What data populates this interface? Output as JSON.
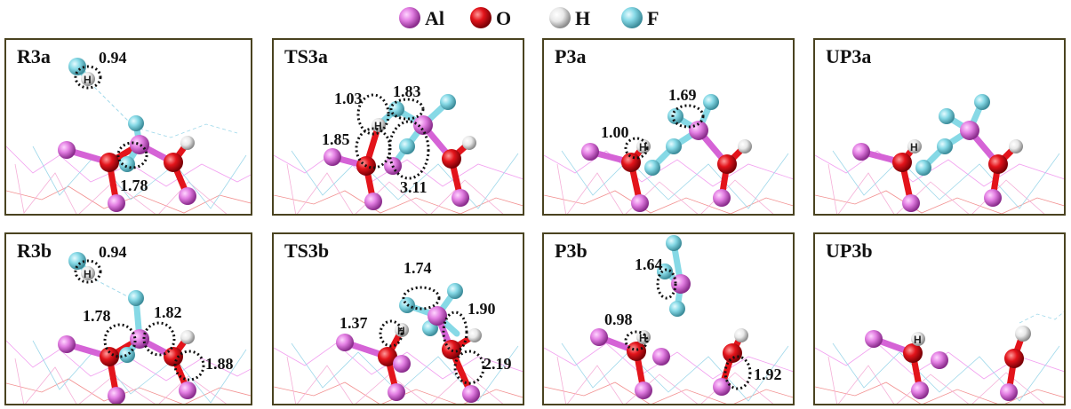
{
  "legend": [
    {
      "label": "Al",
      "color": "#d563d6",
      "icon": "al-atom-icon"
    },
    {
      "label": "O",
      "color": "#e3141b",
      "icon": "o-atom-icon"
    },
    {
      "label": "H",
      "color": "#eeeeee",
      "icon": "h-atom-icon"
    },
    {
      "label": "F",
      "color": "#86d9e6",
      "icon": "f-atom-icon"
    }
  ],
  "atom_symbol_h": "H",
  "panels": [
    {
      "label": "R3a",
      "distances": [
        "0.94",
        "1.78"
      ]
    },
    {
      "label": "TS3a",
      "distances": [
        "1.03",
        "1.83",
        "1.85",
        "3.11"
      ]
    },
    {
      "label": "P3a",
      "distances": [
        "1.00",
        "1.69"
      ]
    },
    {
      "label": "UP3a",
      "distances": []
    },
    {
      "label": "R3b",
      "distances": [
        "0.94",
        "1.78",
        "1.82",
        "1.88"
      ]
    },
    {
      "label": "TS3b",
      "distances": [
        "1.74",
        "1.37",
        "1.90",
        "2.19"
      ]
    },
    {
      "label": "P3b",
      "distances": [
        "1.64",
        "0.98",
        "1.92"
      ]
    },
    {
      "label": "UP3b",
      "distances": []
    }
  ]
}
